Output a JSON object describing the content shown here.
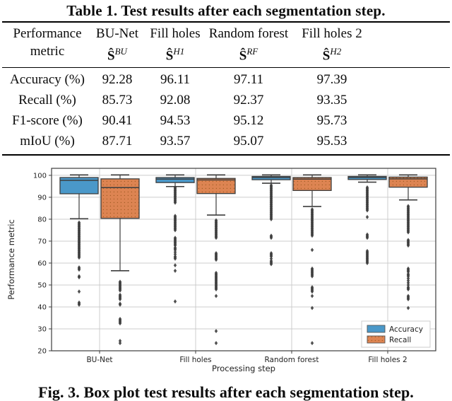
{
  "table": {
    "title": "Table 1. Test results after each segmentation step.",
    "symbol_base": "Ŝ",
    "columns": [
      {
        "line1": "Performance",
        "line2": "metric",
        "sup": ""
      },
      {
        "line1": "BU-Net",
        "sup": "BU"
      },
      {
        "line1": "Fill holes",
        "sup": "H1"
      },
      {
        "line1": "Random forest",
        "sup": "RF"
      },
      {
        "line1": "Fill holes 2",
        "sup": "H2"
      }
    ],
    "rows": [
      {
        "metric": "Accuracy (%)",
        "values": [
          "92.28",
          "96.11",
          "97.11",
          "97.39"
        ]
      },
      {
        "metric": "Recall (%)",
        "values": [
          "85.73",
          "92.08",
          "92.37",
          "93.35"
        ]
      },
      {
        "metric": "F1-score (%)",
        "values": [
          "90.41",
          "94.53",
          "95.12",
          "95.73"
        ]
      },
      {
        "metric": "mIoU (%)",
        "values": [
          "87.71",
          "93.57",
          "95.07",
          "95.53"
        ]
      }
    ]
  },
  "chart_data": {
    "type": "boxplot",
    "title": "",
    "xlabel": "Processing step",
    "ylabel": "Performance metric",
    "categories": [
      "BU-Net",
      "Fill holes",
      "Random forest",
      "Fill holes 2"
    ],
    "ylim": [
      20,
      103.2
    ],
    "yticks": [
      20,
      30,
      40,
      50,
      60,
      70,
      80,
      90,
      100
    ],
    "grid": true,
    "legend_position": "lower right",
    "colors": {
      "accuracy": "#4a98c9",
      "recall": "#dd8452",
      "box_edge": "#3d3d3d",
      "gridline": "#cccccc"
    },
    "legend": [
      {
        "label": "Accuracy",
        "color": "#4a98c9"
      },
      {
        "label": "Recall",
        "color": "#dd8452"
      }
    ],
    "series": [
      {
        "name": "Accuracy",
        "color": "#4a98c9",
        "hatch": "none",
        "boxes": [
          {
            "whislo": 80.2,
            "q1": 91.6,
            "med": 97.7,
            "q3": 99.0,
            "whishi": 100.2,
            "fliers": [
              78.5,
              78,
              77.5,
              77,
              76.5,
              76,
              75.5,
              75,
              74.5,
              74,
              73.5,
              73,
              72.5,
              72,
              71.5,
              71,
              70.5,
              70,
              69.5,
              69,
              68.5,
              68,
              67.5,
              67,
              66.5,
              66,
              65.5,
              65,
              64.5,
              64,
              63.5,
              63,
              62.5,
              58,
              57.5,
              57,
              54,
              53.5,
              47,
              42,
              41.5,
              41
            ]
          },
          {
            "whislo": 94.9,
            "q1": 96.7,
            "med": 98.3,
            "q3": 99.0,
            "whishi": 100.2,
            "fliers": [
              94.5,
              94,
              93.5,
              93,
              92.5,
              92,
              91.5,
              91,
              90.5,
              90,
              89.5,
              89,
              88.5,
              88,
              87.5,
              81.5,
              81,
              80.5,
              80,
              79.5,
              79,
              78.5,
              78,
              77.5,
              77,
              76.5,
              76,
              75.5,
              75,
              71.5,
              71,
              70.5,
              70,
              69.5,
              69,
              68.5,
              68,
              67,
              66.5,
              66,
              65,
              64,
              63,
              62.5,
              62,
              59,
              56.5,
              42.5
            ]
          },
          {
            "whislo": 96.4,
            "q1": 98.0,
            "med": 99.0,
            "q3": 99.5,
            "whishi": 100.2,
            "fliers": [
              95.5,
              95,
              94.5,
              94,
              93.5,
              93,
              92.5,
              92,
              91.5,
              91,
              90.5,
              90,
              89.5,
              89,
              88.5,
              88,
              87.5,
              87,
              86.5,
              86,
              85.5,
              85,
              84.5,
              84,
              83.5,
              83,
              82.5,
              82,
              81.5,
              81,
              80.5,
              80,
              72.5,
              72,
              71.5,
              64.5,
              64,
              63.5,
              63,
              62,
              61,
              60.5,
              60,
              59.5
            ]
          },
          {
            "whislo": 96.9,
            "q1": 98.1,
            "med": 99.0,
            "q3": 99.5,
            "whishi": 100.2,
            "fliers": [
              94.5,
              94,
              93.5,
              93,
              92.5,
              92,
              91.5,
              91,
              90.5,
              90,
              89.5,
              89,
              88.5,
              88,
              87.5,
              87,
              86.5,
              86,
              85.5,
              85,
              84.5,
              84,
              81,
              73,
              72.5,
              72,
              71.5,
              65.5,
              65,
              64.5,
              64,
              63.5,
              63,
              62.5,
              62,
              61.5,
              61,
              60.5,
              60
            ]
          }
        ]
      },
      {
        "name": "Recall",
        "color": "#dd8452",
        "hatch": "dots",
        "boxes": [
          {
            "whislo": 56.5,
            "q1": 80.4,
            "med": 94.4,
            "q3": 98.4,
            "whishi": 100.2,
            "fliers": [
              51.5,
              51,
              50.5,
              50,
              49.5,
              49,
              48.5,
              48,
              47.5,
              45.5,
              45,
              44.5,
              44,
              43.5,
              41.5,
              41,
              34.5,
              34,
              33.5,
              33,
              32.5,
              24.5,
              23.5
            ]
          },
          {
            "whislo": 81.9,
            "q1": 91.7,
            "med": 97.9,
            "q3": 98.6,
            "whishi": 100.2,
            "fliers": [
              79.5,
              79,
              78.5,
              78,
              77.5,
              77,
              76.5,
              76,
              75.5,
              75,
              74.5,
              74,
              73.5,
              73,
              72.5,
              72,
              71.5,
              64.5,
              64,
              63.5,
              63,
              62.5,
              62,
              61.5,
              55.5,
              55,
              54.5,
              54,
              53.5,
              53,
              52.5,
              52,
              51.5,
              51,
              50.5,
              50,
              49.5,
              49,
              48.5,
              48,
              45,
              29,
              23.5
            ]
          },
          {
            "whislo": 85.8,
            "q1": 93.1,
            "med": 98.3,
            "q3": 99.0,
            "whishi": 100.2,
            "fliers": [
              84.5,
              84,
              83.5,
              83,
              82.5,
              82,
              81.5,
              81,
              80.5,
              80,
              79.5,
              79,
              78.5,
              78,
              77.5,
              77,
              76.5,
              76,
              75.5,
              75,
              74.5,
              74,
              73.5,
              73,
              72.5,
              66,
              57.5,
              57,
              56.5,
              56,
              55.5,
              55,
              54.5,
              54,
              49,
              48.5,
              48,
              47.5,
              47,
              45,
              39.5,
              23.5
            ]
          },
          {
            "whislo": 88.8,
            "q1": 94.6,
            "med": 98.4,
            "q3": 99.2,
            "whishi": 100.2,
            "fliers": [
              86,
              85.5,
              85,
              84.5,
              84,
              83.5,
              83,
              82.5,
              82,
              81.5,
              81,
              80.5,
              80,
              79.5,
              79,
              78.5,
              78,
              77.5,
              77,
              76.5,
              76,
              75.5,
              75,
              74.5,
              74,
              70.5,
              70,
              69.5,
              69,
              68.5,
              68,
              57.5,
              57,
              56.5,
              56,
              55,
              54.5,
              54,
              53,
              52,
              51,
              50,
              49,
              48.5,
              48,
              45,
              44.5,
              44,
              43.5,
              39.5
            ]
          }
        ]
      }
    ]
  },
  "caption": "Fig. 3. Box plot test results after each segmentation step."
}
